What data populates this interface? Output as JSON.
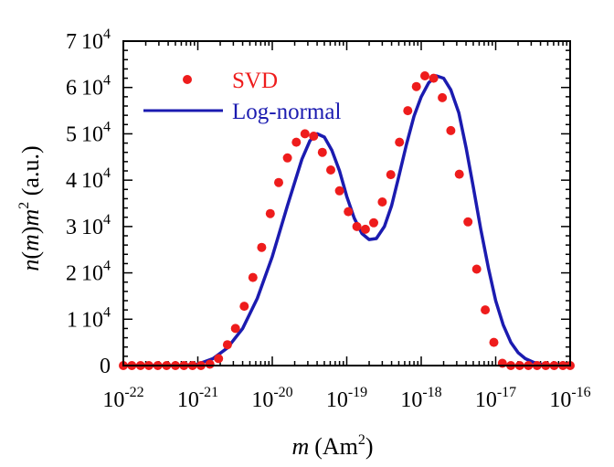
{
  "chart_data": {
    "type": "scatter",
    "title": "",
    "xlabel": {
      "var": "m",
      "unit": "(Am",
      "unit_sup": "2",
      "unit_end": ")"
    },
    "ylabel": {
      "pre": "n(m)m",
      "sup": "2",
      "post": " (a.u.)"
    },
    "x_scale": "log",
    "xlim": [
      1e-22,
      1e-16
    ],
    "ylim": [
      0,
      70000
    ],
    "x_ticks": [
      {
        "base": "10",
        "exp": "-22",
        "value": 1e-22
      },
      {
        "base": "10",
        "exp": "-21",
        "value": 1e-21
      },
      {
        "base": "10",
        "exp": "-20",
        "value": 1e-20
      },
      {
        "base": "10",
        "exp": "-19",
        "value": 1e-19
      },
      {
        "base": "10",
        "exp": "-18",
        "value": 1e-18
      },
      {
        "base": "10",
        "exp": "-17",
        "value": 1e-17
      },
      {
        "base": "10",
        "exp": "-16",
        "value": 1e-16
      }
    ],
    "y_ticks": [
      {
        "mant": "0",
        "pow": "",
        "exp": "",
        "value": 0
      },
      {
        "mant": "1",
        "pow": "10",
        "exp": "4",
        "value": 10000
      },
      {
        "mant": "2",
        "pow": "10",
        "exp": "4",
        "value": 20000
      },
      {
        "mant": "3",
        "pow": "10",
        "exp": "4",
        "value": 30000
      },
      {
        "mant": "4",
        "pow": "10",
        "exp": "4",
        "value": 40000
      },
      {
        "mant": "5",
        "pow": "10",
        "exp": "4",
        "value": 50000
      },
      {
        "mant": "6",
        "pow": "10",
        "exp": "4",
        "value": 60000
      },
      {
        "mant": "7",
        "pow": "10",
        "exp": "4",
        "value": 70000
      }
    ],
    "grid": false,
    "legend": {
      "placement": "top-left"
    },
    "series": [
      {
        "name": "SVD",
        "kind": "scatter",
        "color": "#ee1c1c",
        "x": [
          1e-22,
          1.3e-22,
          1.7e-22,
          2.2e-22,
          2.9e-22,
          3.8e-22,
          5e-22,
          6.5e-22,
          8.5e-22,
          1.1e-21,
          1.45e-21,
          1.9e-21,
          2.5e-21,
          3.2e-21,
          4.2e-21,
          5.5e-21,
          7.2e-21,
          9.4e-21,
          1.22e-20,
          1.6e-20,
          2.1e-20,
          2.75e-20,
          3.6e-20,
          4.7e-20,
          6.1e-20,
          8e-20,
          1.05e-19,
          1.37e-19,
          1.78e-19,
          2.3e-19,
          3e-19,
          3.9e-19,
          5.1e-19,
          6.6e-19,
          8.6e-19,
          1.12e-18,
          1.47e-18,
          1.92e-18,
          2.5e-18,
          3.25e-18,
          4.25e-18,
          5.55e-18,
          7.25e-18,
          9.45e-18,
          1.23e-17,
          1.6e-17,
          2.1e-17,
          2.75e-17,
          3.6e-17,
          4.7e-17,
          6.1e-17,
          8e-17,
          1e-16
        ],
        "y": [
          0,
          0,
          0,
          0,
          0,
          0,
          0,
          0,
          0,
          0,
          300,
          1500,
          4500,
          8000,
          12800,
          19000,
          25500,
          32800,
          39500,
          44800,
          48200,
          50000,
          49500,
          46000,
          42200,
          37700,
          33200,
          30000,
          29400,
          30800,
          35300,
          41200,
          48200,
          55000,
          60200,
          62500,
          62000,
          57800,
          50700,
          41300,
          31000,
          20800,
          12000,
          5000,
          500,
          0,
          0,
          0,
          0,
          0,
          0,
          0,
          0
        ]
      },
      {
        "name": "Log-normal",
        "kind": "line",
        "color": "#1b1bb0",
        "x": [
          1e-22,
          3e-22,
          6e-22,
          1e-21,
          1.6e-21,
          2.5e-21,
          4e-21,
          6.3e-21,
          1e-20,
          1.6e-20,
          2.5e-20,
          3.2e-20,
          4e-20,
          5e-20,
          6.3e-20,
          8e-20,
          1e-19,
          1.26e-19,
          1.6e-19,
          2e-19,
          2.5e-19,
          3.2e-19,
          4e-19,
          5e-19,
          6.3e-19,
          8e-19,
          1e-18,
          1.26e-18,
          1.6e-18,
          2e-18,
          2.5e-18,
          3.2e-18,
          4e-18,
          5e-18,
          6.3e-18,
          8e-18,
          1e-17,
          1.26e-17,
          1.6e-17,
          2e-17,
          2.5e-17,
          3.2e-17,
          4e-17,
          5e-17,
          6.3e-17,
          8e-17,
          1e-16
        ],
        "y": [
          0,
          0,
          0,
          300,
          1500,
          3800,
          8000,
          14500,
          23500,
          34500,
          44500,
          48500,
          50000,
          49300,
          46500,
          42000,
          36500,
          31800,
          28500,
          27200,
          27400,
          30000,
          34500,
          40800,
          47500,
          53800,
          58000,
          61000,
          62500,
          62000,
          59500,
          54500,
          47000,
          38500,
          29500,
          21000,
          14000,
          8800,
          5000,
          2800,
          1500,
          700,
          300,
          100,
          50,
          0,
          0
        ]
      }
    ]
  }
}
